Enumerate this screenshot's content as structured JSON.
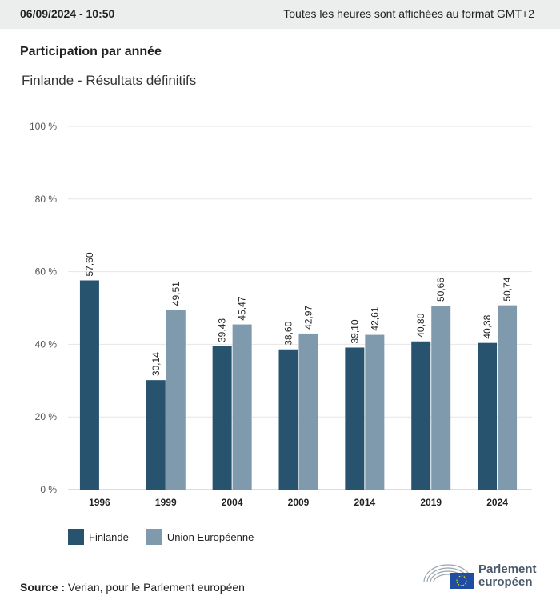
{
  "header": {
    "datetime": "06/09/2024 - 10:50",
    "timezone_note": "Toutes les heures sont affichées au format GMT+2"
  },
  "title": "Participation par année",
  "subtitle": "Finlande - Résultats définitifs",
  "colors": {
    "finlande": "#27536f",
    "ue": "#7f9aad",
    "grid": "#e6e6e6"
  },
  "chart_data": {
    "type": "bar",
    "categories": [
      "1996",
      "1999",
      "2004",
      "2009",
      "2014",
      "2019",
      "2024"
    ],
    "series": [
      {
        "name": "Finlande",
        "values": [
          57.6,
          30.14,
          39.43,
          38.6,
          39.1,
          40.8,
          40.38
        ],
        "labels": [
          "57,60",
          "30,14",
          "39,43",
          "38,60",
          "39,10",
          "40,80",
          "40,38"
        ]
      },
      {
        "name": "Union Européenne",
        "values": [
          null,
          49.51,
          45.47,
          42.97,
          42.61,
          50.66,
          50.74
        ],
        "labels": [
          null,
          "49,51",
          "45,47",
          "42,97",
          "42,61",
          "50,66",
          "50,74"
        ]
      }
    ],
    "ylim": [
      0,
      100
    ],
    "yticks": [
      "0 %",
      "20 %",
      "40 %",
      "60 %",
      "80 %",
      "100 %"
    ],
    "grid": true,
    "legend": "bottom-left"
  },
  "source": {
    "label": "Source :",
    "text": "Verian, pour le Parlement européen"
  },
  "logo": {
    "line1": "Parlement",
    "line2": "européen"
  }
}
